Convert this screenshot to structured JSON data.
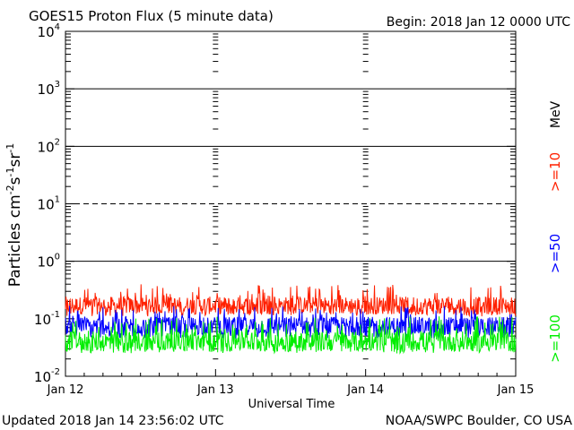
{
  "title": "GOES15 Proton Flux (5 minute data)",
  "begin_label": "Begin: 2018 Jan 12 0000 UTC",
  "updated_label": "Updated 2018 Jan 14 23:56:02 UTC",
  "credit_label": "NOAA/SWPC Boulder, CO USA",
  "ylabel_main": "Particles cm",
  "ylabel_sup1": "-2",
  "ylabel_mid1": "s",
  "ylabel_sup2": "-1",
  "ylabel_mid2": "sr",
  "ylabel_sup3": "-1",
  "xlabel": "Universal Time",
  "unit_label": "MeV",
  "chart_data": {
    "type": "line",
    "yscale": "log",
    "ylim": [
      0.01,
      10000
    ],
    "xlim": [
      "Jan 12",
      "Jan 15"
    ],
    "x_ticks": [
      "Jan 12",
      "Jan 13",
      "Jan 14",
      "Jan 15"
    ],
    "y_ticks": [
      {
        "base": "10",
        "exp": "-2",
        "value": 0.01
      },
      {
        "base": "10",
        "exp": "-1",
        "value": 0.1
      },
      {
        "base": "10",
        "exp": "0",
        "value": 1
      },
      {
        "base": "10",
        "exp": "1",
        "value": 10
      },
      {
        "base": "10",
        "exp": "2",
        "value": 100
      },
      {
        "base": "10",
        "exp": "3",
        "value": 1000
      },
      {
        "base": "10",
        "exp": "4",
        "value": 10000
      }
    ],
    "reference_lines": [
      {
        "value": 1,
        "style": "solid"
      },
      {
        "value": 10,
        "style": "dashed"
      },
      {
        "value": 100,
        "style": "solid"
      },
      {
        "value": 1000,
        "style": "solid"
      }
    ],
    "series": [
      {
        "name": ">=10",
        "color": "#ff2000",
        "typical": 0.17,
        "min": 0.11,
        "max": 0.4
      },
      {
        "name": ">=50",
        "color": "#0000ff",
        "typical": 0.075,
        "min": 0.045,
        "max": 0.17
      },
      {
        "name": ">=100",
        "color": "#00ee00",
        "typical": 0.04,
        "min": 0.025,
        "max": 0.11
      }
    ]
  }
}
